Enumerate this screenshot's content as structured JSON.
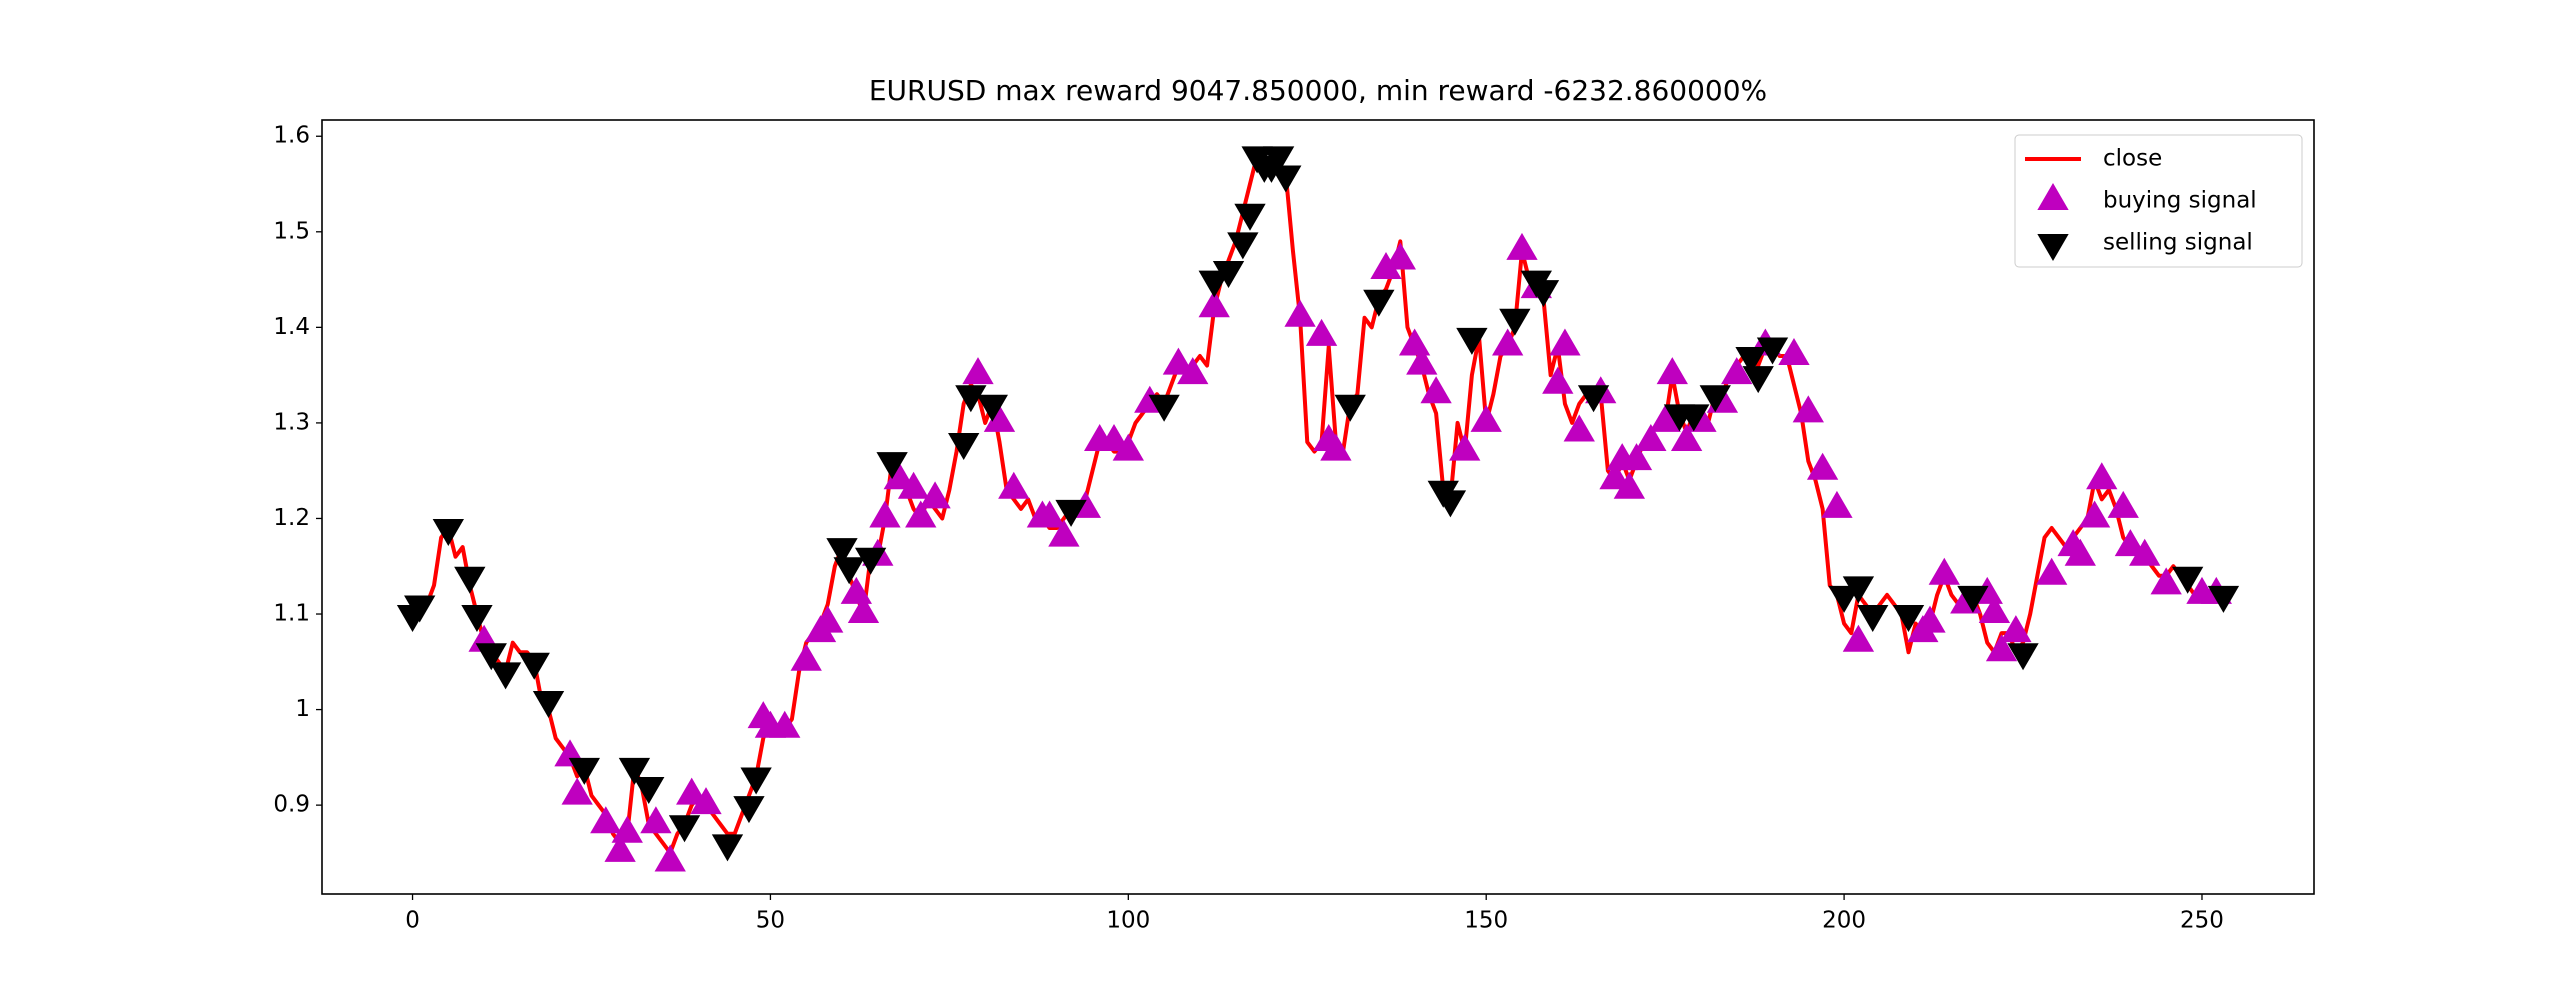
{
  "chart_data": {
    "type": "line",
    "title": "EURUSD max reward 9047.850000, min reward -6232.860000%",
    "xlim": [
      -12.65,
      265.65
    ],
    "ylim": [
      0.807,
      1.617
    ],
    "xticks": [
      0,
      50,
      100,
      150,
      200,
      250
    ],
    "yticks": [
      0.9,
      1.0,
      1.1,
      1.2,
      1.3,
      1.4,
      1.5,
      1.6
    ],
    "legend": "upper right",
    "series": [
      {
        "name": "close",
        "color": "#ff0000",
        "marker": "line",
        "x": [
          0,
          1,
          2,
          3,
          4,
          5,
          6,
          7,
          8,
          9,
          10,
          11,
          12,
          13,
          14,
          15,
          16,
          17,
          18,
          19,
          20,
          21,
          22,
          23,
          24,
          25,
          26,
          27,
          28,
          29,
          30,
          31,
          32,
          33,
          34,
          35,
          36,
          37,
          38,
          39,
          40,
          41,
          42,
          43,
          44,
          45,
          46,
          47,
          48,
          49,
          50,
          51,
          52,
          53,
          54,
          55,
          56,
          57,
          58,
          59,
          60,
          61,
          62,
          63,
          64,
          65,
          66,
          67,
          68,
          69,
          70,
          71,
          72,
          73,
          74,
          75,
          76,
          77,
          78,
          79,
          80,
          81,
          82,
          83,
          84,
          85,
          86,
          87,
          88,
          89,
          90,
          91,
          92,
          93,
          94,
          95,
          96,
          97,
          98,
          99,
          100,
          101,
          102,
          103,
          104,
          105,
          106,
          107,
          108,
          109,
          110,
          111,
          112,
          113,
          114,
          115,
          116,
          117,
          118,
          119,
          120,
          121,
          122,
          123,
          124,
          125,
          126,
          127,
          128,
          129,
          130,
          131,
          132,
          133,
          134,
          135,
          136,
          137,
          138,
          139,
          140,
          141,
          142,
          143,
          144,
          145,
          146,
          147,
          148,
          149,
          150,
          151,
          152,
          153,
          154,
          155,
          156,
          157,
          158,
          159,
          160,
          161,
          162,
          163,
          164,
          165,
          166,
          167,
          168,
          169,
          170,
          171,
          172,
          173,
          174,
          175,
          176,
          177,
          178,
          179,
          180,
          181,
          182,
          183,
          184,
          185,
          186,
          187,
          188,
          189,
          190,
          191,
          192,
          193,
          194,
          195,
          196,
          197,
          198,
          199,
          200,
          201,
          202,
          203,
          204,
          205,
          206,
          207,
          208,
          209,
          210,
          211,
          212,
          213,
          214,
          215,
          216,
          217,
          218,
          219,
          220,
          221,
          222,
          223,
          224,
          225,
          226,
          227,
          228,
          229,
          230,
          231,
          232,
          233,
          234,
          235,
          236,
          237,
          238,
          239,
          240,
          241,
          242,
          243,
          244,
          245,
          246,
          247,
          248,
          249,
          250,
          251,
          252,
          253
        ],
        "values": [
          1.1,
          1.1,
          1.11,
          1.13,
          1.18,
          1.19,
          1.16,
          1.17,
          1.13,
          1.1,
          1.07,
          1.06,
          1.05,
          1.04,
          1.07,
          1.06,
          1.06,
          1.05,
          1.01,
          1.0,
          0.97,
          0.96,
          0.95,
          0.93,
          0.94,
          0.91,
          0.9,
          0.89,
          0.87,
          0.86,
          0.87,
          0.94,
          0.92,
          0.88,
          0.87,
          0.86,
          0.85,
          0.87,
          0.88,
          0.9,
          0.91,
          0.9,
          0.89,
          0.88,
          0.87,
          0.87,
          0.89,
          0.91,
          0.93,
          0.97,
          0.99,
          0.98,
          0.98,
          0.99,
          1.04,
          1.07,
          1.08,
          1.09,
          1.11,
          1.15,
          1.17,
          1.14,
          1.12,
          1.1,
          1.16,
          1.16,
          1.2,
          1.26,
          1.25,
          1.23,
          1.21,
          1.2,
          1.22,
          1.21,
          1.2,
          1.23,
          1.27,
          1.32,
          1.34,
          1.33,
          1.3,
          1.32,
          1.28,
          1.23,
          1.22,
          1.21,
          1.22,
          1.2,
          1.2,
          1.19,
          1.19,
          1.2,
          1.21,
          1.21,
          1.22,
          1.25,
          1.28,
          1.28,
          1.27,
          1.27,
          1.28,
          1.3,
          1.31,
          1.32,
          1.33,
          1.32,
          1.34,
          1.36,
          1.35,
          1.36,
          1.37,
          1.36,
          1.42,
          1.45,
          1.47,
          1.49,
          1.52,
          1.55,
          1.58,
          1.57,
          1.56,
          1.57,
          1.56,
          1.48,
          1.41,
          1.28,
          1.27,
          1.28,
          1.38,
          1.28,
          1.27,
          1.32,
          1.33,
          1.41,
          1.4,
          1.43,
          1.44,
          1.46,
          1.49,
          1.4,
          1.38,
          1.36,
          1.33,
          1.31,
          1.23,
          1.22,
          1.3,
          1.27,
          1.35,
          1.39,
          1.3,
          1.33,
          1.37,
          1.38,
          1.4,
          1.48,
          1.45,
          1.44,
          1.43,
          1.35,
          1.38,
          1.32,
          1.3,
          1.32,
          1.33,
          1.33,
          1.33,
          1.25,
          1.24,
          1.26,
          1.24,
          1.26,
          1.28,
          1.29,
          1.3,
          1.3,
          1.35,
          1.31,
          1.29,
          1.31,
          1.31,
          1.3,
          1.33,
          1.33,
          1.35,
          1.36,
          1.37,
          1.37,
          1.36,
          1.38,
          1.38,
          1.37,
          1.37,
          1.34,
          1.31,
          1.26,
          1.24,
          1.21,
          1.13,
          1.12,
          1.09,
          1.08,
          1.12,
          1.11,
          1.1,
          1.11,
          1.12,
          1.11,
          1.1,
          1.06,
          1.09,
          1.08,
          1.09,
          1.12,
          1.14,
          1.12,
          1.11,
          1.12,
          1.12,
          1.1,
          1.07,
          1.06,
          1.08,
          1.08,
          1.06,
          1.07,
          1.1,
          1.14,
          1.18,
          1.19,
          1.18,
          1.17,
          1.18,
          1.19,
          1.2,
          1.24,
          1.22,
          1.23,
          1.21,
          1.18,
          1.17,
          1.17,
          1.16,
          1.15,
          1.14,
          1.14,
          1.15,
          1.14,
          1.13,
          1.12,
          1.12,
          1.12,
          1.12,
          1.12
        ]
      },
      {
        "name": "buying signal",
        "color": "#bf00bf",
        "marker": "^",
        "x": [
          10,
          22,
          23,
          27,
          29,
          30,
          34,
          36,
          39,
          41,
          49,
          50,
          52,
          55,
          57,
          58,
          62,
          63,
          65,
          66,
          68,
          70,
          71,
          73,
          79,
          82,
          84,
          88,
          89,
          91,
          94,
          96,
          98,
          100,
          103,
          107,
          109,
          112,
          124,
          127,
          128,
          129,
          136,
          138,
          140,
          141,
          143,
          147,
          150,
          153,
          155,
          157,
          160,
          161,
          163,
          166,
          168,
          169,
          170,
          171,
          173,
          175,
          176,
          178,
          180,
          183,
          185,
          189,
          193,
          195,
          197,
          199,
          202,
          211,
          212,
          214,
          217,
          220,
          221,
          222,
          224,
          229,
          232,
          233,
          235,
          236,
          239,
          240,
          242,
          245,
          250,
          252
        ],
        "values": [
          1.07,
          0.95,
          0.91,
          0.88,
          0.85,
          0.87,
          0.88,
          0.84,
          0.91,
          0.9,
          0.99,
          0.98,
          0.98,
          1.05,
          1.08,
          1.09,
          1.12,
          1.1,
          1.16,
          1.2,
          1.24,
          1.23,
          1.2,
          1.22,
          1.35,
          1.3,
          1.23,
          1.2,
          1.2,
          1.18,
          1.21,
          1.28,
          1.28,
          1.27,
          1.32,
          1.36,
          1.35,
          1.42,
          1.41,
          1.39,
          1.28,
          1.27,
          1.46,
          1.47,
          1.38,
          1.36,
          1.33,
          1.27,
          1.3,
          1.38,
          1.48,
          1.44,
          1.34,
          1.38,
          1.29,
          1.33,
          1.24,
          1.26,
          1.23,
          1.26,
          1.28,
          1.3,
          1.35,
          1.28,
          1.3,
          1.32,
          1.35,
          1.38,
          1.37,
          1.31,
          1.25,
          1.21,
          1.07,
          1.08,
          1.09,
          1.14,
          1.11,
          1.12,
          1.1,
          1.06,
          1.08,
          1.14,
          1.17,
          1.16,
          1.2,
          1.24,
          1.21,
          1.17,
          1.16,
          1.13,
          1.12,
          1.12
        ]
      },
      {
        "name": "selling signal",
        "color": "#000000",
        "marker": "v",
        "x": [
          0,
          1,
          5,
          8,
          9,
          11,
          13,
          17,
          19,
          24,
          31,
          33,
          38,
          44,
          47,
          48,
          60,
          61,
          64,
          67,
          77,
          78,
          81,
          92,
          105,
          112,
          114,
          116,
          117,
          118,
          119,
          120,
          121,
          122,
          131,
          135,
          144,
          145,
          148,
          154,
          157,
          158,
          165,
          177,
          179,
          182,
          187,
          188,
          190,
          200,
          202,
          204,
          209,
          218,
          225,
          248,
          253
        ],
        "values": [
          1.1,
          1.11,
          1.19,
          1.14,
          1.1,
          1.06,
          1.04,
          1.05,
          1.01,
          0.94,
          0.94,
          0.92,
          0.88,
          0.86,
          0.9,
          0.93,
          1.17,
          1.15,
          1.16,
          1.26,
          1.28,
          1.33,
          1.32,
          1.21,
          1.32,
          1.45,
          1.46,
          1.49,
          1.52,
          1.58,
          1.57,
          1.57,
          1.58,
          1.56,
          1.32,
          1.43,
          1.23,
          1.22,
          1.39,
          1.41,
          1.45,
          1.44,
          1.33,
          1.31,
          1.31,
          1.33,
          1.37,
          1.35,
          1.38,
          1.12,
          1.13,
          1.1,
          1.1,
          1.12,
          1.06,
          1.14,
          1.12
        ]
      }
    ]
  }
}
